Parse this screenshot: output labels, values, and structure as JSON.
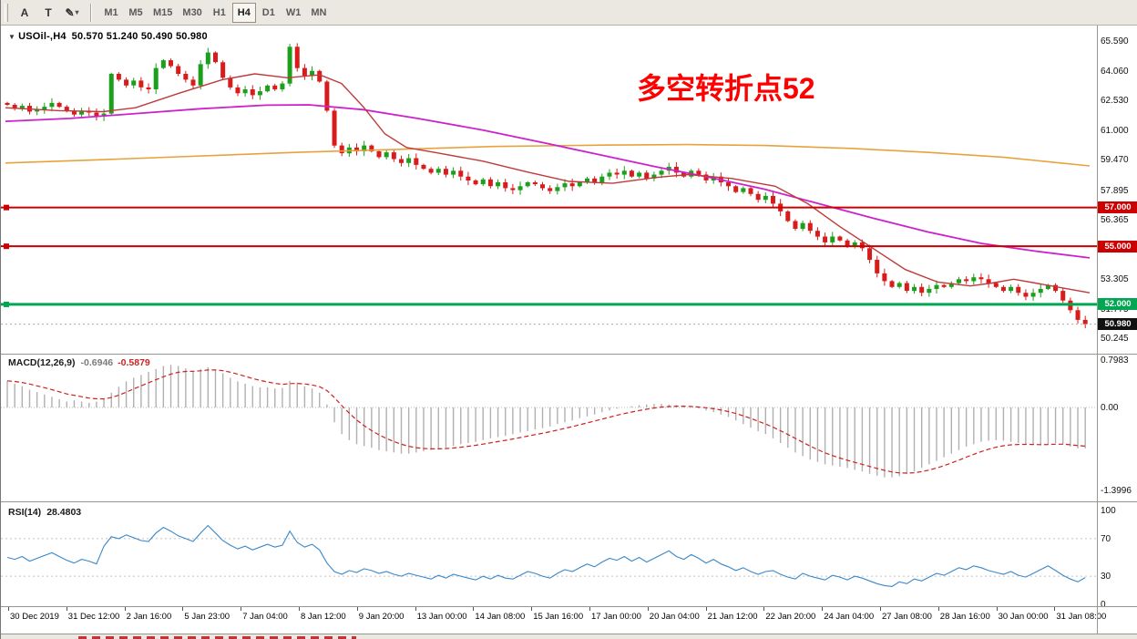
{
  "toolbar": {
    "tool_a_label": "A",
    "tool_t_label": "T",
    "draw_icon": "✎",
    "caret": "▾",
    "timeframes": [
      "M1",
      "M5",
      "M15",
      "M30",
      "H1",
      "H4",
      "D1",
      "W1",
      "MN"
    ],
    "active_timeframe": "H4"
  },
  "chart": {
    "collapse_icon": "▼",
    "symbol_timeframe": "USOil-,H4",
    "ohlc_text": "50.570 51.240 50.490 50.980",
    "annotation": {
      "text": "多空转折点52",
      "color": "#ff0000"
    },
    "price_axis_labels": [
      "65.590",
      "64.060",
      "62.530",
      "61.000",
      "59.470",
      "57.895",
      "56.365",
      "54.835",
      "53.305",
      "51.775",
      "50.245"
    ],
    "levels": [
      {
        "label": "57.000",
        "value": 57.0,
        "color": "#cc0000",
        "width": 2
      },
      {
        "label": "55.000",
        "value": 55.0,
        "color": "#cc0000",
        "width": 2
      },
      {
        "label": "52.000",
        "value": 52.0,
        "color": "#00a651",
        "width": 3
      }
    ],
    "current_price": {
      "label": "50.980",
      "value": 50.98,
      "badge_color": "#111111"
    }
  },
  "indicators": {
    "macd": {
      "label": "MACD(12,26,9)",
      "main_value": "-0.6946",
      "signal_value": "-0.5879",
      "axis_labels": [
        "0.7983",
        "0.00",
        "-1.3996"
      ]
    },
    "rsi": {
      "label": "RSI(14)",
      "value": "28.4803",
      "axis_labels": [
        "100",
        "70",
        "30",
        "0"
      ],
      "level_lines": [
        70,
        30
      ]
    }
  },
  "time_axis": [
    "30 Dec 2019",
    "31 Dec 12:00",
    "2 Jan 16:00",
    "5 Jan 23:00",
    "7 Jan 04:00",
    "8 Jan 12:00",
    "9 Jan 20:00",
    "13 Jan 00:00",
    "14 Jan 08:00",
    "15 Jan 16:00",
    "17 Jan 00:00",
    "20 Jan 04:00",
    "21 Jan 12:00",
    "22 Jan 20:00",
    "24 Jan 04:00",
    "27 Jan 08:00",
    "28 Jan 16:00",
    "30 Jan 00:00",
    "31 Jan 08:00"
  ],
  "chart_data": {
    "type": "candlestick",
    "symbol": "USOil-",
    "timeframe": "H4",
    "price_range": [
      49.55,
      66.3
    ],
    "closes": [
      62.3,
      62.1,
      62.25,
      61.95,
      62.05,
      62.2,
      62.4,
      62.2,
      62.0,
      61.8,
      62.0,
      61.9,
      61.7,
      61.85,
      63.9,
      63.6,
      63.3,
      63.55,
      63.2,
      63.1,
      64.2,
      64.6,
      64.3,
      63.9,
      63.6,
      63.3,
      64.4,
      65.0,
      64.5,
      63.7,
      63.2,
      62.9,
      63.1,
      62.8,
      63.0,
      63.3,
      63.1,
      63.4,
      65.3,
      64.2,
      63.8,
      64.05,
      63.5,
      62.0,
      60.2,
      59.8,
      60.1,
      59.9,
      60.2,
      59.9,
      59.6,
      59.85,
      59.5,
      59.3,
      59.55,
      59.2,
      59.0,
      58.8,
      59.0,
      58.7,
      58.9,
      58.6,
      58.4,
      58.2,
      58.45,
      58.1,
      58.3,
      58.0,
      57.9,
      58.1,
      58.3,
      58.2,
      58.0,
      57.85,
      58.05,
      58.25,
      58.1,
      58.3,
      58.5,
      58.3,
      58.6,
      58.8,
      58.7,
      58.9,
      58.6,
      58.8,
      58.5,
      58.7,
      58.9,
      59.1,
      58.8,
      58.6,
      58.9,
      58.7,
      58.4,
      58.6,
      58.3,
      58.1,
      57.8,
      58.0,
      57.7,
      57.4,
      57.6,
      57.2,
      56.8,
      56.3,
      55.9,
      56.2,
      55.8,
      55.5,
      55.2,
      55.5,
      55.3,
      55.0,
      55.2,
      54.9,
      54.3,
      53.6,
      53.2,
      52.9,
      53.1,
      52.7,
      52.9,
      52.6,
      52.8,
      53.0,
      52.9,
      53.1,
      53.3,
      53.2,
      53.4,
      53.3,
      53.1,
      52.9,
      52.7,
      52.9,
      52.6,
      52.4,
      52.6,
      52.8,
      53.0,
      52.7,
      52.2,
      51.7,
      51.2,
      50.98
    ],
    "ma_fast_red": [
      [
        0,
        62.15
      ],
      [
        0.05,
        62.0
      ],
      [
        0.09,
        61.95
      ],
      [
        0.12,
        62.15
      ],
      [
        0.16,
        62.9
      ],
      [
        0.2,
        63.6
      ],
      [
        0.23,
        63.9
      ],
      [
        0.26,
        63.7
      ],
      [
        0.29,
        63.85
      ],
      [
        0.31,
        63.4
      ],
      [
        0.33,
        62.2
      ],
      [
        0.35,
        60.8
      ],
      [
        0.37,
        60.1
      ],
      [
        0.4,
        59.8
      ],
      [
        0.44,
        59.4
      ],
      [
        0.48,
        58.85
      ],
      [
        0.52,
        58.35
      ],
      [
        0.56,
        58.25
      ],
      [
        0.6,
        58.55
      ],
      [
        0.63,
        58.7
      ],
      [
        0.67,
        58.5
      ],
      [
        0.71,
        58.1
      ],
      [
        0.74,
        57.2
      ],
      [
        0.77,
        56.0
      ],
      [
        0.8,
        54.9
      ],
      [
        0.83,
        53.8
      ],
      [
        0.86,
        53.15
      ],
      [
        0.89,
        52.95
      ],
      [
        0.91,
        53.1
      ],
      [
        0.93,
        53.3
      ],
      [
        0.95,
        53.1
      ],
      [
        0.97,
        52.9
      ],
      [
        1,
        52.6
      ]
    ],
    "ma_mid_magenta": [
      [
        0,
        61.45
      ],
      [
        0.06,
        61.6
      ],
      [
        0.12,
        61.85
      ],
      [
        0.18,
        62.1
      ],
      [
        0.24,
        62.28
      ],
      [
        0.28,
        62.3
      ],
      [
        0.33,
        62.05
      ],
      [
        0.38,
        61.6
      ],
      [
        0.44,
        61.0
      ],
      [
        0.5,
        60.3
      ],
      [
        0.55,
        59.7
      ],
      [
        0.6,
        59.1
      ],
      [
        0.65,
        58.55
      ],
      [
        0.7,
        57.95
      ],
      [
        0.75,
        57.2
      ],
      [
        0.8,
        56.45
      ],
      [
        0.85,
        55.75
      ],
      [
        0.9,
        55.15
      ],
      [
        0.95,
        54.75
      ],
      [
        1,
        54.4
      ]
    ],
    "ma_slow_orange": [
      [
        0,
        59.3
      ],
      [
        0.08,
        59.45
      ],
      [
        0.16,
        59.62
      ],
      [
        0.27,
        59.85
      ],
      [
        0.36,
        60.0
      ],
      [
        0.45,
        60.15
      ],
      [
        0.55,
        60.22
      ],
      [
        0.63,
        60.25
      ],
      [
        0.7,
        60.2
      ],
      [
        0.78,
        60.05
      ],
      [
        0.85,
        59.85
      ],
      [
        0.92,
        59.6
      ],
      [
        1,
        59.15
      ]
    ],
    "macd": {
      "range": [
        -1.3996,
        0.7983
      ],
      "values": [
        0.45,
        0.4,
        0.36,
        0.3,
        0.26,
        0.22,
        0.18,
        0.14,
        0.1,
        0.12,
        0.1,
        0.08,
        0.1,
        0.14,
        0.25,
        0.35,
        0.44,
        0.5,
        0.55,
        0.6,
        0.65,
        0.7,
        0.72,
        0.7,
        0.66,
        0.62,
        0.65,
        0.68,
        0.64,
        0.58,
        0.5,
        0.44,
        0.4,
        0.36,
        0.34,
        0.34,
        0.32,
        0.33,
        0.45,
        0.42,
        0.36,
        0.32,
        0.25,
        0.05,
        -0.25,
        -0.45,
        -0.55,
        -0.62,
        -0.65,
        -0.68,
        -0.72,
        -0.74,
        -0.76,
        -0.78,
        -0.78,
        -0.76,
        -0.74,
        -0.72,
        -0.7,
        -0.68,
        -0.65,
        -0.62,
        -0.6,
        -0.58,
        -0.55,
        -0.52,
        -0.5,
        -0.48,
        -0.45,
        -0.42,
        -0.4,
        -0.37,
        -0.35,
        -0.32,
        -0.28,
        -0.25,
        -0.22,
        -0.18,
        -0.15,
        -0.12,
        -0.08,
        -0.05,
        -0.02,
        0.0,
        0.02,
        0.04,
        0.05,
        0.06,
        0.06,
        0.05,
        0.04,
        0.02,
        0.0,
        -0.02,
        -0.05,
        -0.08,
        -0.12,
        -0.16,
        -0.22,
        -0.28,
        -0.34,
        -0.4,
        -0.45,
        -0.52,
        -0.6,
        -0.68,
        -0.76,
        -0.82,
        -0.88,
        -0.92,
        -0.96,
        -0.98,
        -1.0,
        -1.02,
        -1.05,
        -1.08,
        -1.12,
        -1.15,
        -1.18,
        -1.18,
        -1.16,
        -1.12,
        -1.08,
        -1.02,
        -0.96,
        -0.9,
        -0.84,
        -0.78,
        -0.72,
        -0.66,
        -0.62,
        -0.58,
        -0.56,
        -0.55,
        -0.56,
        -0.58,
        -0.6,
        -0.62,
        -0.63,
        -0.64,
        -0.62,
        -0.6,
        -0.62,
        -0.66,
        -0.69,
        -0.69
      ]
    },
    "rsi": {
      "range": [
        0,
        100
      ],
      "values": [
        50,
        48,
        51,
        46,
        49,
        52,
        55,
        51,
        47,
        44,
        48,
        46,
        43,
        62,
        72,
        70,
        74,
        71,
        68,
        67,
        76,
        82,
        78,
        73,
        70,
        67,
        76,
        84,
        76,
        68,
        63,
        59,
        62,
        58,
        61,
        64,
        61,
        63,
        78,
        66,
        61,
        64,
        58,
        44,
        35,
        32,
        36,
        34,
        38,
        36,
        33,
        35,
        32,
        30,
        33,
        31,
        29,
        27,
        31,
        28,
        32,
        30,
        28,
        26,
        30,
        27,
        31,
        28,
        27,
        31,
        35,
        33,
        30,
        28,
        33,
        37,
        35,
        39,
        43,
        40,
        45,
        49,
        47,
        51,
        46,
        50,
        45,
        49,
        53,
        57,
        51,
        48,
        53,
        49,
        44,
        48,
        43,
        40,
        36,
        39,
        35,
        32,
        35,
        36,
        32,
        29,
        27,
        33,
        30,
        28,
        26,
        31,
        29,
        26,
        30,
        28,
        25,
        22,
        20,
        19,
        24,
        22,
        27,
        25,
        29,
        33,
        31,
        35,
        39,
        37,
        41,
        39,
        36,
        34,
        32,
        35,
        31,
        29,
        33,
        37,
        41,
        36,
        31,
        27,
        24,
        28.5
      ]
    },
    "colors": {
      "up": "#1ca01c",
      "down": "#d81c1c",
      "macd_hist": "#b0b0b0",
      "macd_signal": "#cc2222",
      "rsi_line": "#3a87c8",
      "ma_fast": "#c03a3a",
      "ma_mid": "#cc22cc",
      "ma_slow": "#e8a23c"
    }
  }
}
